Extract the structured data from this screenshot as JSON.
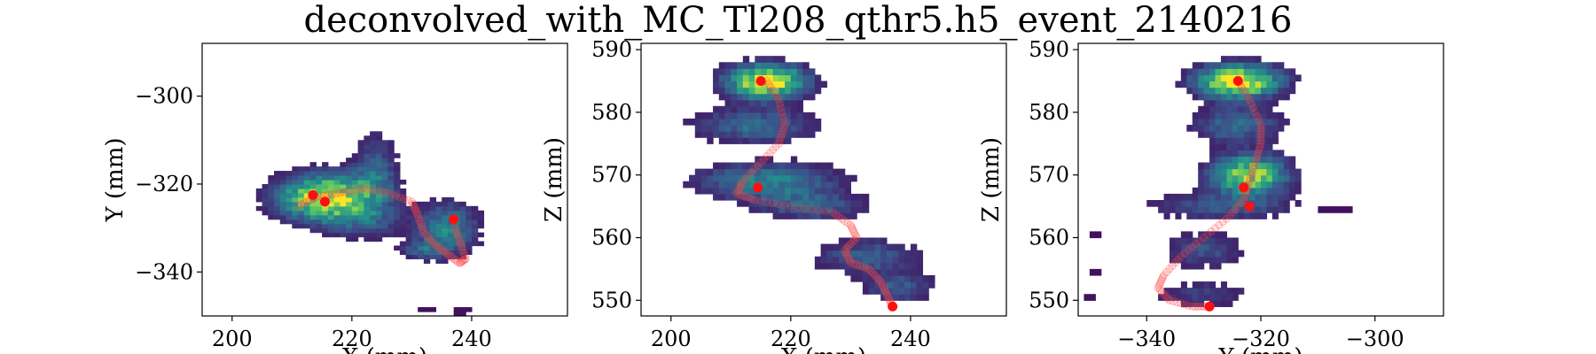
{
  "figure": {
    "title": "deconvolved_with_MC_Tl208_qthr5.h5_event_2140216"
  },
  "chart_data": [
    {
      "type": "heatmap",
      "title": "",
      "xlabel": "X (mm)",
      "ylabel": "Y (mm)",
      "xlim": [
        195,
        256
      ],
      "ylim": [
        -350,
        -288
      ],
      "xticks": [
        200,
        220,
        240
      ],
      "yticks": [
        -300,
        -320,
        -340
      ],
      "xticklabels": [
        "200",
        "220",
        "240"
      ],
      "yticklabels": [
        "−300",
        "−320",
        "−340"
      ],
      "colormap": "viridis",
      "cell_size": [
        1,
        1
      ],
      "blobs": [
        {
          "x": 216,
          "y": -323,
          "sx": 5.5,
          "sy": 3.5,
          "amp": 1.0
        },
        {
          "x": 224,
          "y": -317,
          "sx": 2.5,
          "sy": 6.0,
          "amp": 0.3
        },
        {
          "x": 236,
          "y": -330,
          "sx": 3.5,
          "sy": 4.0,
          "amp": 0.45
        },
        {
          "x": 232,
          "y": -335,
          "sx": 3.0,
          "sy": 1.5,
          "amp": 0.25
        },
        {
          "x": 222,
          "y": -329,
          "sx": 5.0,
          "sy": 2.5,
          "amp": 0.2
        }
      ],
      "markers": [
        {
          "x": 213.5,
          "y": -322.5
        },
        {
          "x": 215.5,
          "y": -324
        },
        {
          "x": 237,
          "y": -328
        }
      ],
      "track": [
        [
          211,
          -325
        ],
        [
          214,
          -323
        ],
        [
          218,
          -322
        ],
        [
          222,
          -321
        ],
        [
          226,
          -322
        ],
        [
          230,
          -324
        ],
        [
          231,
          -327
        ],
        [
          232,
          -331
        ],
        [
          234,
          -334
        ],
        [
          236,
          -336
        ],
        [
          238,
          -338
        ],
        [
          239,
          -337
        ],
        [
          238,
          -333
        ],
        [
          237,
          -329
        ]
      ],
      "extra_cells": [
        [
          231,
          -349
        ],
        [
          232,
          -349
        ],
        [
          233,
          -349
        ],
        [
          237,
          -349
        ],
        [
          238,
          -349
        ],
        [
          239,
          -349
        ],
        [
          237,
          -350
        ],
        [
          238,
          -350
        ]
      ]
    },
    {
      "type": "heatmap",
      "title": "",
      "xlabel": "X (mm)",
      "ylabel": "Z (mm)",
      "xlim": [
        195,
        256
      ],
      "ylim": [
        547.5,
        591
      ],
      "xticks": [
        200,
        220,
        240
      ],
      "yticks": [
        550,
        560,
        570,
        580,
        590
      ],
      "xticklabels": [
        "200",
        "220",
        "240"
      ],
      "yticklabels": [
        "550",
        "560",
        "570",
        "580",
        "590"
      ],
      "colormap": "viridis",
      "cell_size": [
        1,
        1
      ],
      "blobs": [
        {
          "x": 216,
          "y": 585,
          "sx": 4.5,
          "sy": 1.8,
          "amp": 1.0
        },
        {
          "x": 214,
          "y": 578,
          "sx": 7.0,
          "sy": 2.0,
          "amp": 0.35
        },
        {
          "x": 216,
          "y": 569,
          "sx": 8.0,
          "sy": 2.0,
          "amp": 0.45
        },
        {
          "x": 224,
          "y": 565,
          "sx": 6.0,
          "sy": 1.5,
          "amp": 0.3
        },
        {
          "x": 233,
          "y": 557,
          "sx": 6.0,
          "sy": 2.0,
          "amp": 0.3
        },
        {
          "x": 238,
          "y": 552,
          "sx": 4.0,
          "sy": 1.5,
          "amp": 0.3
        }
      ],
      "markers": [
        {
          "x": 215,
          "y": 585
        },
        {
          "x": 214.5,
          "y": 568
        },
        {
          "x": 237,
          "y": 549
        }
      ],
      "track": [
        [
          216,
          585
        ],
        [
          218,
          582
        ],
        [
          219,
          578
        ],
        [
          218,
          575
        ],
        [
          215,
          572
        ],
        [
          212,
          569
        ],
        [
          211,
          567
        ],
        [
          214,
          566
        ],
        [
          220,
          565
        ],
        [
          227,
          564
        ],
        [
          230,
          562
        ],
        [
          231,
          560
        ],
        [
          229,
          558
        ],
        [
          230,
          556
        ],
        [
          233,
          555
        ],
        [
          235,
          553
        ],
        [
          236,
          551
        ],
        [
          237,
          549
        ]
      ],
      "extra_cells": []
    },
    {
      "type": "heatmap",
      "title": "",
      "xlabel": "Y (mm)",
      "ylabel": "Z (mm)",
      "xlim": [
        -352,
        -288
      ],
      "ylim": [
        547.5,
        591
      ],
      "xticks": [
        -340,
        -320,
        -300
      ],
      "yticks": [
        550,
        560,
        570,
        580,
        590
      ],
      "xticklabels": [
        "−340",
        "−320",
        "−300"
      ],
      "yticklabels": [
        "550",
        "560",
        "570",
        "580",
        "590"
      ],
      "colormap": "viridis",
      "cell_size": [
        1,
        1
      ],
      "blobs": [
        {
          "x": -324,
          "y": 585,
          "sx": 5.0,
          "sy": 1.8,
          "amp": 1.0
        },
        {
          "x": -324,
          "y": 578,
          "sx": 5.5,
          "sy": 2.0,
          "amp": 0.35
        },
        {
          "x": -322,
          "y": 570,
          "sx": 4.5,
          "sy": 2.2,
          "amp": 0.85
        },
        {
          "x": -327,
          "y": 565,
          "sx": 9.0,
          "sy": 1.5,
          "amp": 0.25
        },
        {
          "x": -330,
          "y": 558,
          "sx": 5.0,
          "sy": 2.0,
          "amp": 0.25
        },
        {
          "x": -330,
          "y": 551,
          "sx": 6.0,
          "sy": 1.5,
          "amp": 0.2
        }
      ],
      "markers": [
        {
          "x": -324,
          "y": 585
        },
        {
          "x": -323,
          "y": 568
        },
        {
          "x": -322,
          "y": 565
        },
        {
          "x": -329,
          "y": 549
        }
      ],
      "track": [
        [
          -324,
          585
        ],
        [
          -322,
          582
        ],
        [
          -320,
          578
        ],
        [
          -320,
          575
        ],
        [
          -321,
          572
        ],
        [
          -322,
          569
        ],
        [
          -323,
          566
        ],
        [
          -326,
          563
        ],
        [
          -330,
          560
        ],
        [
          -334,
          557
        ],
        [
          -337,
          554
        ],
        [
          -338,
          552
        ],
        [
          -336,
          550
        ],
        [
          -332,
          549
        ],
        [
          -329,
          549
        ]
      ],
      "extra_cells": [
        [
          -310,
          564
        ],
        [
          -309,
          564
        ],
        [
          -308,
          564
        ],
        [
          -307,
          564
        ],
        [
          -306,
          564
        ],
        [
          -305,
          564
        ],
        [
          -350,
          560
        ],
        [
          -349,
          560
        ],
        [
          -350,
          554
        ],
        [
          -349,
          554
        ],
        [
          -351,
          550
        ],
        [
          -350,
          550
        ]
      ]
    }
  ]
}
